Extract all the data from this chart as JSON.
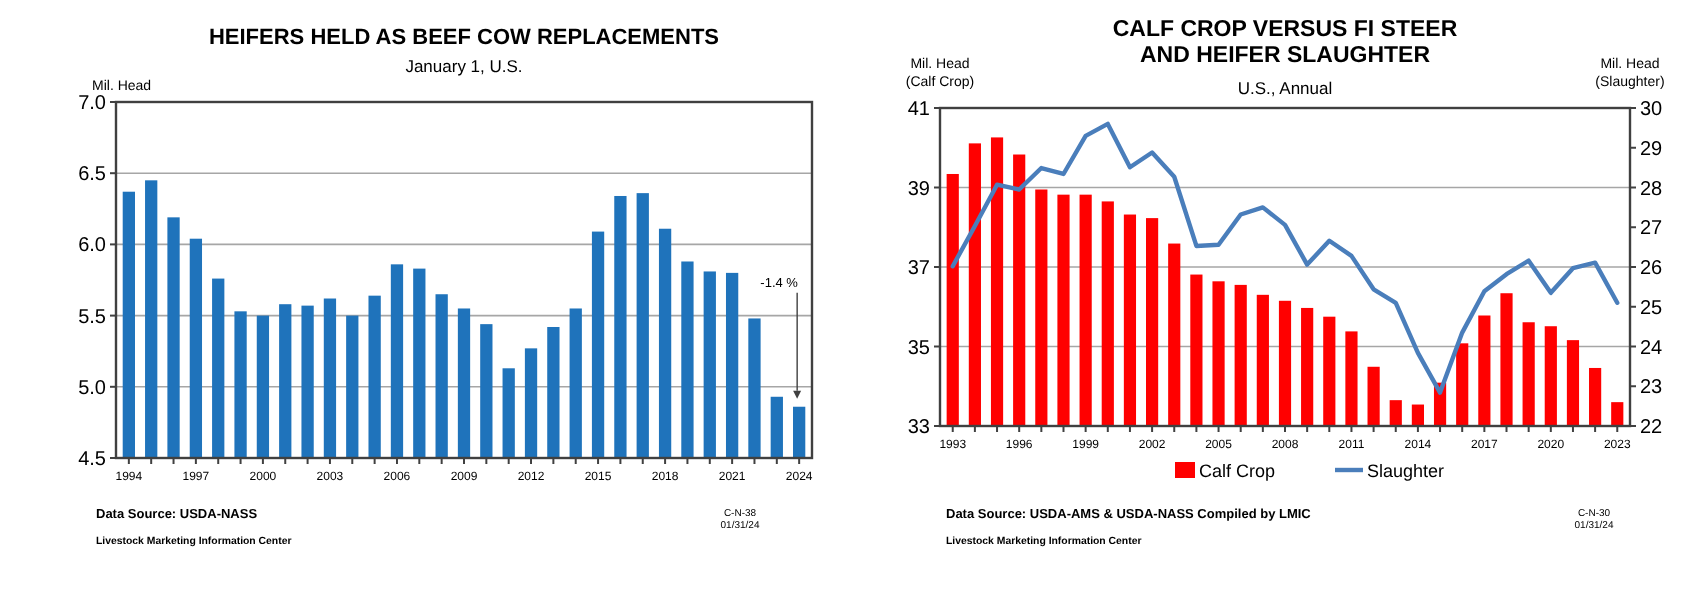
{
  "chart_data": [
    {
      "type": "bar",
      "title": "HEIFERS HELD AS BEEF COW REPLACEMENTS",
      "subtitle": "January 1, U.S.",
      "ylabel": "Mil. Head",
      "categories": [
        "1994",
        null,
        null,
        "1997",
        null,
        null,
        "2000",
        null,
        null,
        "2003",
        null,
        null,
        "2006",
        null,
        null,
        "2009",
        null,
        null,
        "2012",
        null,
        null,
        "2015",
        null,
        null,
        "2018",
        null,
        null,
        "2021",
        null,
        null,
        "2024"
      ],
      "values": [
        6.37,
        6.45,
        6.19,
        6.04,
        5.76,
        5.53,
        5.5,
        5.58,
        5.57,
        5.62,
        5.5,
        5.64,
        5.86,
        5.83,
        5.65,
        5.55,
        5.44,
        5.13,
        5.27,
        5.42,
        5.55,
        6.09,
        6.34,
        6.36,
        6.11,
        5.88,
        5.81,
        5.8,
        5.48,
        4.93,
        4.86
      ],
      "color": "#1f73bb",
      "ylim": [
        4.5,
        7.0
      ],
      "yticks": [
        {
          "value": 4.5,
          "label": "4.5"
        },
        {
          "value": 5,
          "label": "5.0"
        },
        {
          "value": 5.5,
          "label": "5.5"
        },
        {
          "value": 6,
          "label": "6.0"
        },
        {
          "value": 6.5,
          "label": "6.5"
        },
        {
          "value": 7,
          "label": "7.0"
        }
      ],
      "grid": "y",
      "legend": false,
      "annotations": [
        {
          "text": "-1.4 %",
          "x": "2024",
          "y": 4.86
        },
        "Data Source:  USDA-NASS",
        "Livestock Marketing Information Center",
        "C-N-38",
        "01/31/24"
      ]
    },
    {
      "type": "bar",
      "title": "CALF CROP VERSUS FI STEER\nAND HEIFER SLAUGHTER",
      "subtitle": "U.S., Annual",
      "ylabel": "Mil. Head\n(Calf Crop)",
      "y2label": "Mil. Head\n(Slaughter)",
      "categories": [
        "1993",
        null,
        null,
        "1996",
        null,
        null,
        "1999",
        null,
        null,
        "2002",
        null,
        null,
        "2005",
        null,
        null,
        "2008",
        null,
        null,
        "2011",
        null,
        null,
        "2014",
        null,
        null,
        "2017",
        null,
        null,
        "2020",
        null,
        null,
        "2023"
      ],
      "series": [
        {
          "name": "Calf Crop",
          "type": "bar",
          "color": "#ff0000",
          "values": [
            39.34,
            40.11,
            40.26,
            39.83,
            38.95,
            38.82,
            38.82,
            38.65,
            38.32,
            38.23,
            37.59,
            36.81,
            36.64,
            36.55,
            36.3,
            36.15,
            35.97,
            35.75,
            35.38,
            34.49,
            33.65,
            33.54,
            34.09,
            35.08,
            35.78,
            36.34,
            35.61,
            35.51,
            35.16,
            34.46,
            33.6
          ]
        },
        {
          "name": "Slaughter",
          "type": "line",
          "axis": "y2",
          "color": "#4a7ebb",
          "values": [
            26.02,
            27.03,
            28.07,
            27.95,
            28.49,
            28.34,
            29.3,
            29.6,
            28.51,
            28.88,
            28.27,
            26.53,
            26.56,
            27.32,
            27.5,
            27.06,
            26.06,
            26.66,
            26.28,
            25.44,
            25.1,
            23.84,
            22.84,
            24.35,
            25.39,
            25.82,
            26.16,
            25.35,
            25.97,
            26.11,
            25.1
          ]
        }
      ],
      "ylim": [
        33,
        41
      ],
      "yticks": [
        33,
        35,
        37,
        39,
        41
      ],
      "y2lim": [
        22,
        30
      ],
      "y2ticks": [
        22,
        23,
        24,
        25,
        26,
        27,
        28,
        29,
        30
      ],
      "grid": "y",
      "legend": "bottom",
      "annotations": [
        "Data Source:  USDA-AMS & USDA-NASS Compiled by LMIC",
        "Livestock Marketing Information Center",
        "C-N-30",
        "01/31/24"
      ]
    }
  ]
}
